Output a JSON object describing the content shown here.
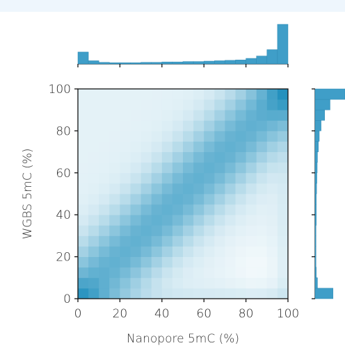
{
  "chart_data": {
    "type": "heatmap",
    "title": "",
    "xlabel": "Nanopore 5mC (%)",
    "ylabel": "WGBS 5mC (%)",
    "xlim": [
      0,
      100
    ],
    "ylim": [
      0,
      100
    ],
    "x_ticks": [
      "0",
      "20",
      "40",
      "60",
      "80",
      "100"
    ],
    "y_ticks": [
      "0",
      "20",
      "40",
      "60",
      "80",
      "100"
    ],
    "bins": 20,
    "colormap": [
      "#ffffff",
      "#1f8fbd"
    ],
    "bar_color": "#3f9ec8",
    "grid": false,
    "marginal_x": {
      "bin_centers": [
        2.5,
        7.5,
        12.5,
        17.5,
        22.5,
        27.5,
        32.5,
        37.5,
        42.5,
        47.5,
        52.5,
        57.5,
        62.5,
        67.5,
        72.5,
        77.5,
        82.5,
        87.5,
        92.5,
        97.5
      ],
      "values": [
        0.3,
        0.08,
        0.04,
        0.03,
        0.03,
        0.03,
        0.04,
        0.04,
        0.05,
        0.05,
        0.06,
        0.06,
        0.07,
        0.08,
        0.09,
        0.1,
        0.14,
        0.2,
        0.36,
        1.0
      ]
    },
    "marginal_y": {
      "bin_centers": [
        2.5,
        7.5,
        12.5,
        17.5,
        22.5,
        27.5,
        32.5,
        37.5,
        42.5,
        47.5,
        52.5,
        57.5,
        62.5,
        67.5,
        72.5,
        77.5,
        82.5,
        87.5,
        92.5,
        97.5
      ],
      "values": [
        0.6,
        0.08,
        0.04,
        0.03,
        0.03,
        0.03,
        0.03,
        0.04,
        0.04,
        0.04,
        0.05,
        0.06,
        0.07,
        0.08,
        0.11,
        0.14,
        0.2,
        0.32,
        0.5,
        1.0
      ]
    }
  }
}
